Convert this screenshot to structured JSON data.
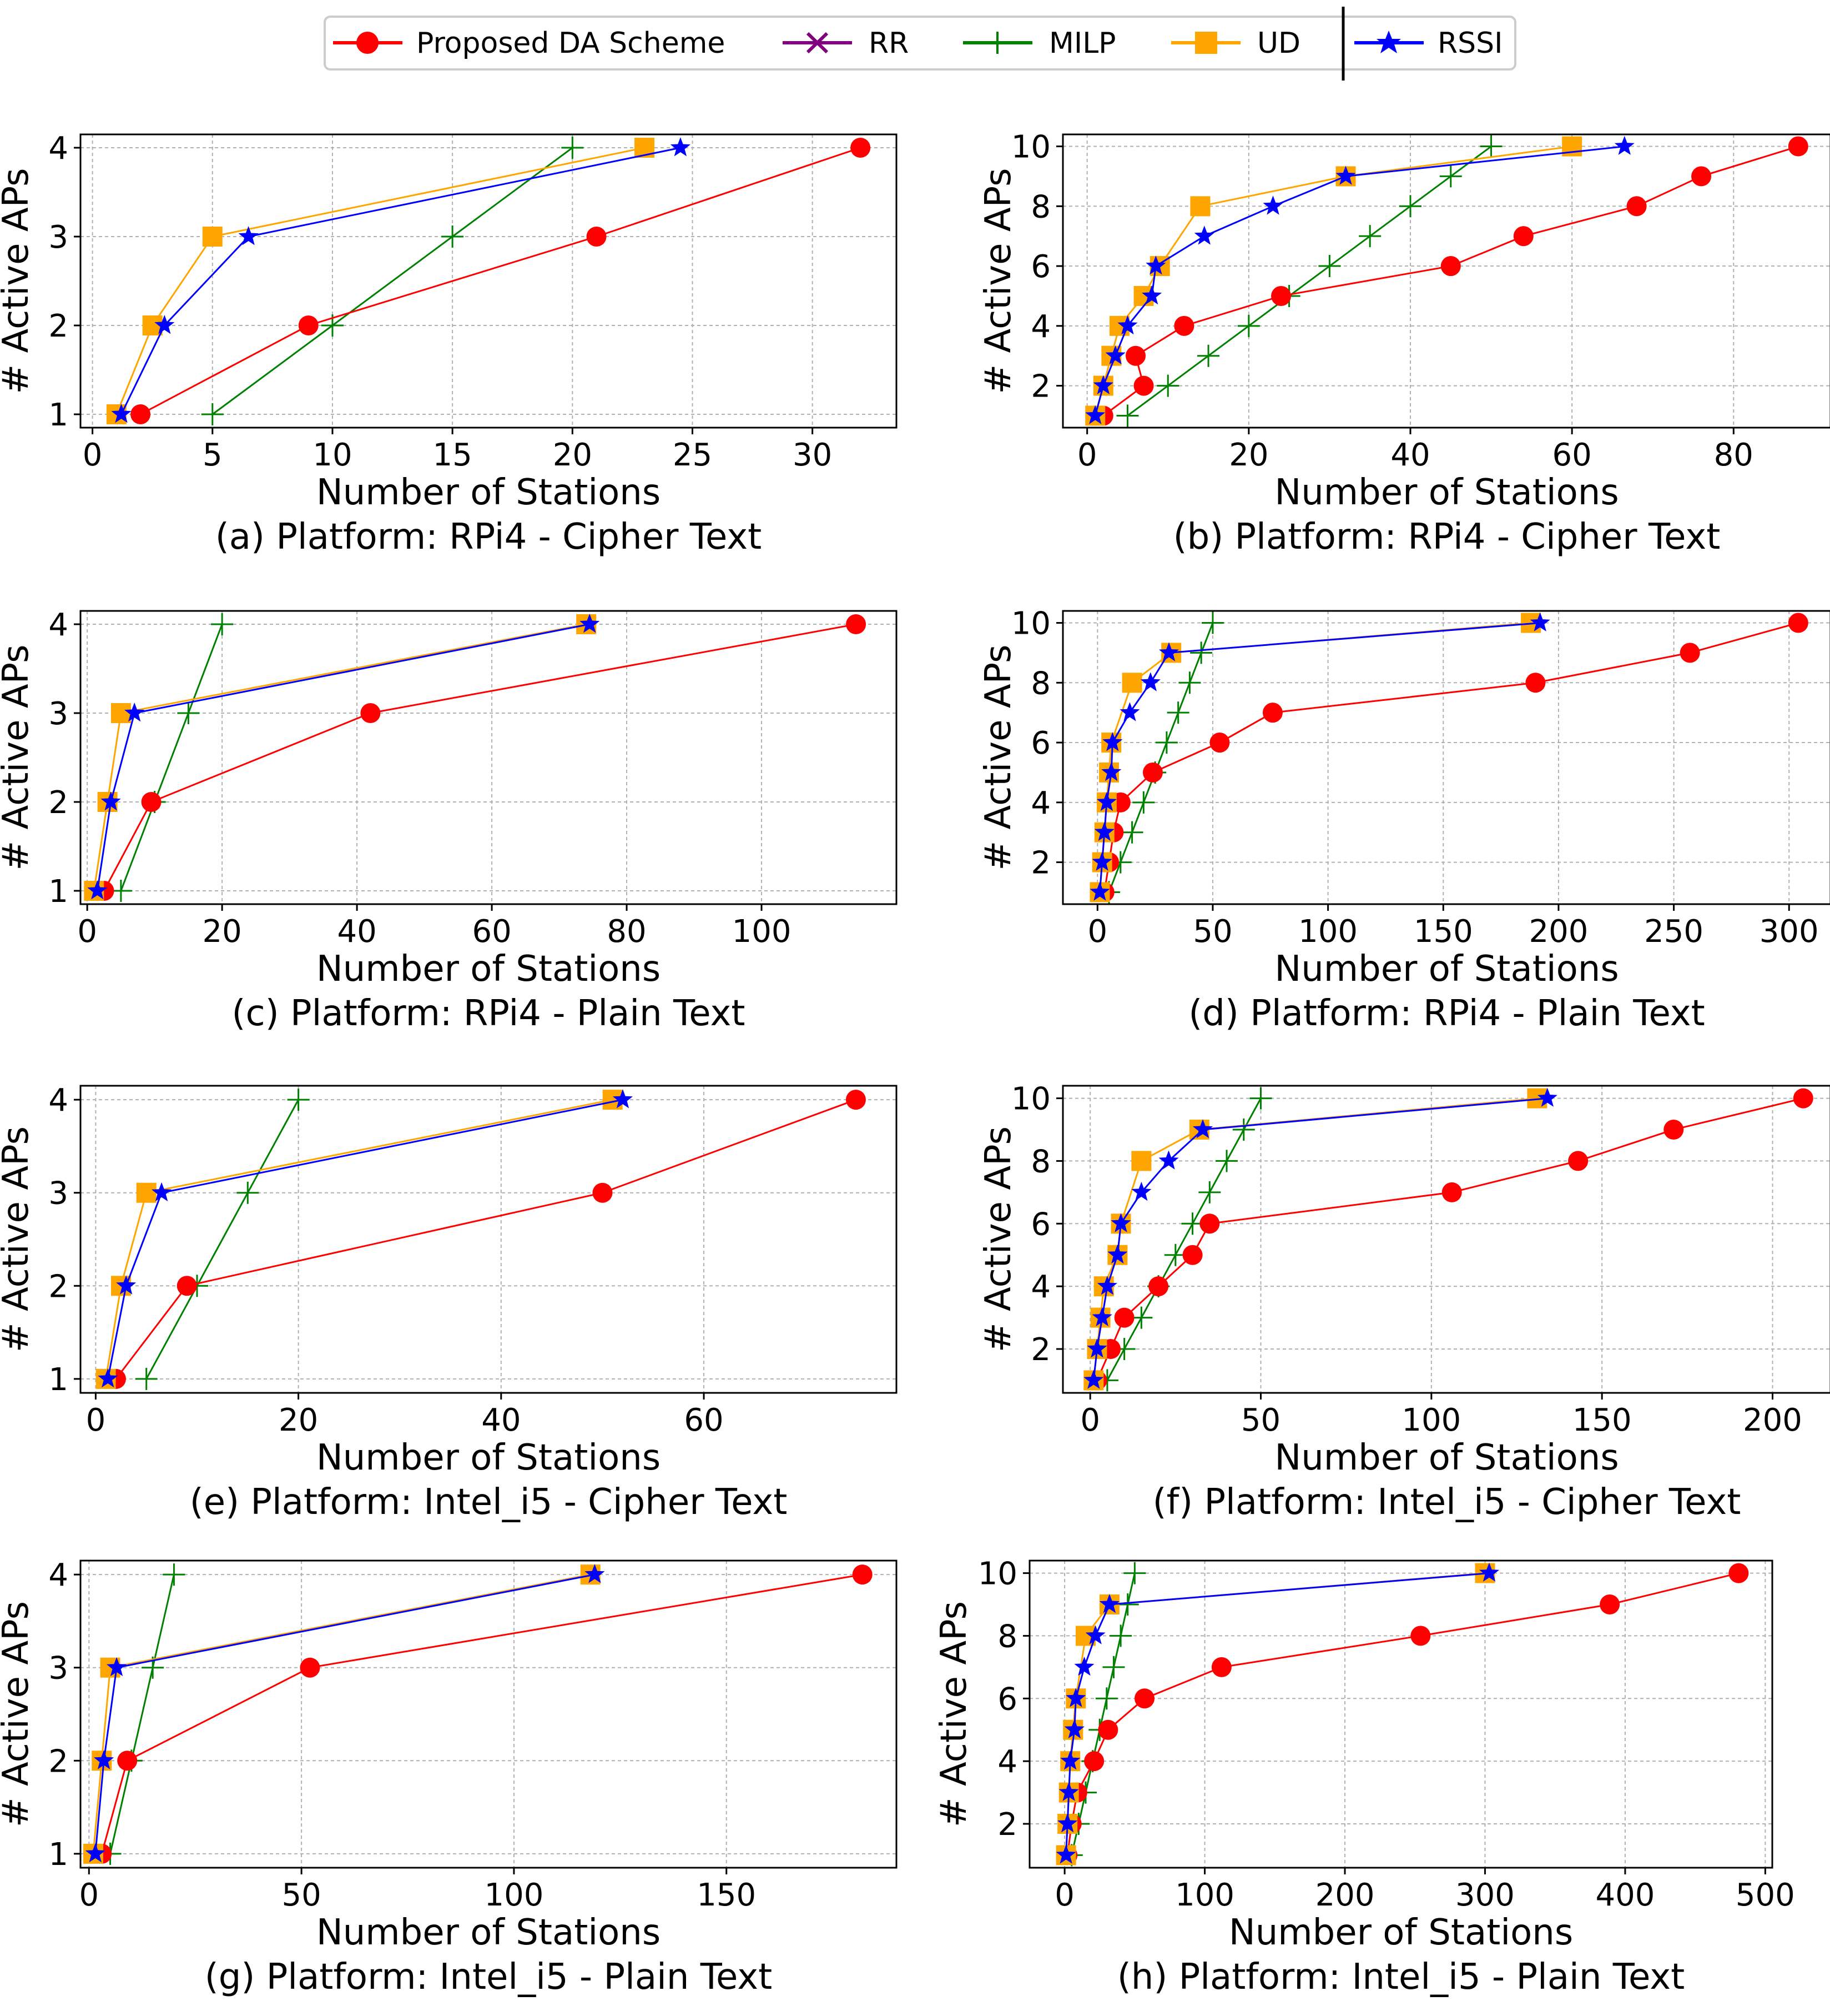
{
  "legend": {
    "entries": [
      {
        "name": "Proposed DA Scheme",
        "color": "#ff0000",
        "marker": "circle"
      },
      {
        "name": "RR",
        "color": "#800080",
        "marker": "x"
      },
      {
        "name": "MILP",
        "color": "#008000",
        "marker": "plus"
      },
      {
        "name": "UD",
        "color": "#ffa500",
        "marker": "square"
      },
      {
        "name": "RSSI",
        "color": "#0000ff",
        "marker": "star"
      }
    ]
  },
  "chart_data": [
    {
      "id": "a",
      "type": "line",
      "caption": "(a) Platform: RPi4 - Cipher Text",
      "xlabel": "Number of Stations",
      "ylabel": "# Active APs",
      "xlim": [
        -0.5,
        33.5
      ],
      "ylim": [
        0.85,
        4.15
      ],
      "xticks": [
        0,
        5,
        10,
        15,
        20,
        25,
        30
      ],
      "yticks": [
        1,
        2,
        3,
        4
      ],
      "series": [
        {
          "name": "MILP",
          "x": [
            5,
            10,
            15,
            20
          ],
          "y": [
            1,
            2,
            3,
            4
          ]
        },
        {
          "name": "UD",
          "x": [
            1,
            2.5,
            5,
            23
          ],
          "y": [
            1,
            2,
            3,
            4
          ]
        },
        {
          "name": "RSSI",
          "x": [
            1.2,
            3,
            6.5,
            24.5
          ],
          "y": [
            1,
            2,
            3,
            4
          ]
        },
        {
          "name": "Proposed DA Scheme",
          "x": [
            2,
            9,
            21,
            32
          ],
          "y": [
            1,
            2,
            3,
            4
          ]
        }
      ]
    },
    {
      "id": "b",
      "type": "line",
      "caption": "(b) Platform: RPi4 - Cipher Text",
      "xlabel": "Number of Stations",
      "ylabel": "# Active APs",
      "xlim": [
        -3,
        92
      ],
      "ylim": [
        0.6,
        10.4
      ],
      "xticks": [
        0,
        20,
        40,
        60,
        80
      ],
      "yticks": [
        2,
        4,
        6,
        8,
        10
      ],
      "series": [
        {
          "name": "MILP",
          "x": [
            5,
            10,
            15,
            20,
            25,
            30,
            35,
            40,
            45,
            50
          ],
          "y": [
            1,
            2,
            3,
            4,
            5,
            6,
            7,
            8,
            9,
            10
          ]
        },
        {
          "name": "UD",
          "x": [
            1,
            2,
            3,
            4,
            7,
            9,
            14,
            32,
            60
          ],
          "y": [
            1,
            2,
            3,
            4,
            5,
            6,
            8,
            9,
            10
          ]
        },
        {
          "name": "RSSI",
          "x": [
            1,
            2,
            3.5,
            5,
            8,
            8.5,
            14.5,
            23,
            32,
            66.5
          ],
          "y": [
            1,
            2,
            3,
            4,
            5,
            6,
            7,
            8,
            9,
            10
          ]
        },
        {
          "name": "Proposed DA Scheme",
          "x": [
            2,
            7,
            6,
            12,
            24,
            45,
            54,
            68,
            76,
            88
          ],
          "y": [
            1,
            2,
            3,
            4,
            5,
            6,
            7,
            8,
            9,
            10
          ]
        }
      ]
    },
    {
      "id": "c",
      "type": "line",
      "caption": "(c) Platform: RPi4 - Plain Text",
      "xlabel": "Number of Stations",
      "ylabel": "# Active APs",
      "xlim": [
        -1,
        120
      ],
      "ylim": [
        0.85,
        4.15
      ],
      "xticks": [
        0,
        20,
        40,
        60,
        80,
        100
      ],
      "yticks": [
        1,
        2,
        3,
        4
      ],
      "series": [
        {
          "name": "MILP",
          "x": [
            5,
            10,
            15,
            20
          ],
          "y": [
            1,
            2,
            3,
            4
          ]
        },
        {
          "name": "UD",
          "x": [
            1,
            3,
            5,
            74
          ],
          "y": [
            1,
            2,
            3,
            4
          ]
        },
        {
          "name": "RSSI",
          "x": [
            1.5,
            3.5,
            7,
            74.5
          ],
          "y": [
            1,
            2,
            3,
            4
          ]
        },
        {
          "name": "Proposed DA Scheme",
          "x": [
            2.5,
            9.5,
            42,
            114
          ],
          "y": [
            1,
            2,
            3,
            4
          ]
        }
      ]
    },
    {
      "id": "d",
      "type": "line",
      "caption": "(d) Platform: RPi4 - Plain Text",
      "xlabel": "Number of Stations",
      "ylabel": "# Active APs",
      "xlim": [
        -15,
        318
      ],
      "ylim": [
        0.6,
        10.4
      ],
      "xticks": [
        0,
        50,
        100,
        150,
        200,
        250,
        300
      ],
      "yticks": [
        2,
        4,
        6,
        8,
        10
      ],
      "series": [
        {
          "name": "MILP",
          "x": [
            5,
            10,
            15,
            20,
            25,
            30,
            35,
            40,
            45,
            50
          ],
          "y": [
            1,
            2,
            3,
            4,
            5,
            6,
            7,
            8,
            9,
            10
          ]
        },
        {
          "name": "UD",
          "x": [
            1,
            2,
            3,
            4,
            5,
            6,
            15,
            32,
            188
          ],
          "y": [
            1,
            2,
            3,
            4,
            5,
            6,
            8,
            9,
            10
          ]
        },
        {
          "name": "RSSI",
          "x": [
            1,
            2,
            3,
            4,
            6,
            6.5,
            14,
            23,
            31,
            192
          ],
          "y": [
            1,
            2,
            3,
            4,
            5,
            6,
            7,
            8,
            9,
            10
          ]
        },
        {
          "name": "Proposed DA Scheme",
          "x": [
            3,
            5,
            7,
            10,
            24,
            53,
            76,
            190,
            257,
            304
          ],
          "y": [
            1,
            2,
            3,
            4,
            5,
            6,
            7,
            8,
            9,
            10
          ]
        }
      ]
    },
    {
      "id": "e",
      "type": "line",
      "caption": "(e) Platform: Intel_i5 - Cipher Text",
      "xlabel": "Number of Stations",
      "ylabel": "# Active APs",
      "xlim": [
        -1.5,
        79
      ],
      "ylim": [
        0.85,
        4.15
      ],
      "xticks": [
        0,
        20,
        40,
        60
      ],
      "yticks": [
        1,
        2,
        3,
        4
      ],
      "series": [
        {
          "name": "MILP",
          "x": [
            5,
            10,
            15,
            20
          ],
          "y": [
            1,
            2,
            3,
            4
          ]
        },
        {
          "name": "UD",
          "x": [
            1,
            2.5,
            5,
            51
          ],
          "y": [
            1,
            2,
            3,
            4
          ]
        },
        {
          "name": "RSSI",
          "x": [
            1.2,
            3,
            6.5,
            52
          ],
          "y": [
            1,
            2,
            3,
            4
          ]
        },
        {
          "name": "Proposed DA Scheme",
          "x": [
            2,
            9,
            50,
            75
          ],
          "y": [
            1,
            2,
            3,
            4
          ]
        }
      ]
    },
    {
      "id": "f",
      "type": "line",
      "caption": "(f) Platform: Intel_i5 - Cipher Text",
      "xlabel": "Number of Stations",
      "ylabel": "# Active APs",
      "xlim": [
        -8,
        217
      ],
      "ylim": [
        0.6,
        10.4
      ],
      "xticks": [
        0,
        50,
        100,
        150,
        200
      ],
      "yticks": [
        2,
        4,
        6,
        8,
        10
      ],
      "series": [
        {
          "name": "MILP",
          "x": [
            5,
            10,
            15,
            20,
            25,
            30,
            35,
            40,
            45,
            50
          ],
          "y": [
            1,
            2,
            3,
            4,
            5,
            6,
            7,
            8,
            9,
            10
          ]
        },
        {
          "name": "UD",
          "x": [
            1,
            2,
            3,
            4,
            8,
            9,
            15,
            32,
            131
          ],
          "y": [
            1,
            2,
            3,
            4,
            5,
            6,
            8,
            9,
            10
          ]
        },
        {
          "name": "RSSI",
          "x": [
            1,
            2,
            3.5,
            5,
            8,
            9,
            15,
            23,
            33,
            134
          ],
          "y": [
            1,
            2,
            3,
            4,
            5,
            6,
            7,
            8,
            9,
            10
          ]
        },
        {
          "name": "Proposed DA Scheme",
          "x": [
            2,
            6,
            10,
            20,
            30,
            35,
            106,
            143,
            171,
            209
          ],
          "y": [
            1,
            2,
            3,
            4,
            5,
            6,
            7,
            8,
            9,
            10
          ]
        }
      ]
    },
    {
      "id": "g",
      "type": "line",
      "caption": "(g) Platform: Intel_i5 - Plain Text",
      "xlabel": "Number of Stations",
      "ylabel": "# Active APs",
      "xlim": [
        -2,
        190
      ],
      "ylim": [
        0.85,
        4.15
      ],
      "xticks": [
        0,
        50,
        100,
        150
      ],
      "yticks": [
        1,
        2,
        3,
        4
      ],
      "series": [
        {
          "name": "MILP",
          "x": [
            5,
            10,
            15,
            20
          ],
          "y": [
            1,
            2,
            3,
            4
          ]
        },
        {
          "name": "UD",
          "x": [
            1,
            3,
            5,
            118
          ],
          "y": [
            1,
            2,
            3,
            4
          ]
        },
        {
          "name": "RSSI",
          "x": [
            1.5,
            3.5,
            6.5,
            119
          ],
          "y": [
            1,
            2,
            3,
            4
          ]
        },
        {
          "name": "Proposed DA Scheme",
          "x": [
            3,
            9,
            52,
            182
          ],
          "y": [
            1,
            2,
            3,
            4
          ]
        }
      ]
    },
    {
      "id": "h",
      "type": "line",
      "caption": "(h) Platform: Intel_i5 - Plain Text",
      "xlabel": "Number of Stations",
      "ylabel": "# Active APs",
      "xlim": [
        -25,
        505
      ],
      "ylim": [
        0.6,
        10.4
      ],
      "xticks": [
        0,
        100,
        200,
        300,
        400,
        500
      ],
      "yticks": [
        2,
        4,
        6,
        8,
        10
      ],
      "series": [
        {
          "name": "MILP",
          "x": [
            5,
            10,
            15,
            20,
            25,
            30,
            35,
            40,
            45,
            50
          ],
          "y": [
            1,
            2,
            3,
            4,
            5,
            6,
            7,
            8,
            9,
            10
          ]
        },
        {
          "name": "UD",
          "x": [
            1,
            2,
            3,
            4,
            6,
            8,
            15,
            32,
            300
          ],
          "y": [
            1,
            2,
            3,
            4,
            5,
            6,
            8,
            9,
            10
          ]
        },
        {
          "name": "RSSI",
          "x": [
            1,
            2,
            3,
            4,
            7,
            8,
            14,
            22,
            32,
            303
          ],
          "y": [
            1,
            2,
            3,
            4,
            5,
            6,
            7,
            8,
            9,
            10
          ]
        },
        {
          "name": "Proposed DA Scheme",
          "x": [
            2,
            5,
            9,
            21,
            31,
            57,
            112,
            254,
            389,
            481
          ],
          "y": [
            1,
            2,
            3,
            4,
            5,
            6,
            7,
            8,
            9,
            10
          ]
        }
      ]
    }
  ]
}
